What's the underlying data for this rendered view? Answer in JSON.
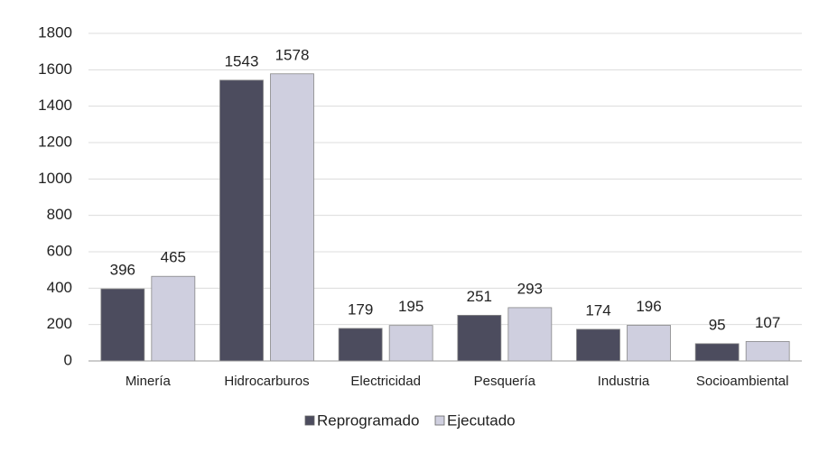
{
  "chart_data": {
    "type": "bar",
    "categories": [
      "Minería",
      "Hidrocarburos",
      "Electricidad",
      "Pesquería",
      "Industria",
      "Socioambiental"
    ],
    "series": [
      {
        "name": "Reprogramado",
        "color": "#4c4c5e",
        "values": [
          396,
          1543,
          179,
          251,
          174,
          95
        ]
      },
      {
        "name": "Ejecutado",
        "color": "#cfcfdf",
        "values": [
          465,
          1578,
          195,
          293,
          196,
          107
        ]
      }
    ],
    "ylim": [
      0,
      1800
    ],
    "yticks": [
      0,
      200,
      400,
      600,
      800,
      1000,
      1200,
      1400,
      1600,
      1800
    ],
    "grid": true,
    "legend": "bottom"
  }
}
